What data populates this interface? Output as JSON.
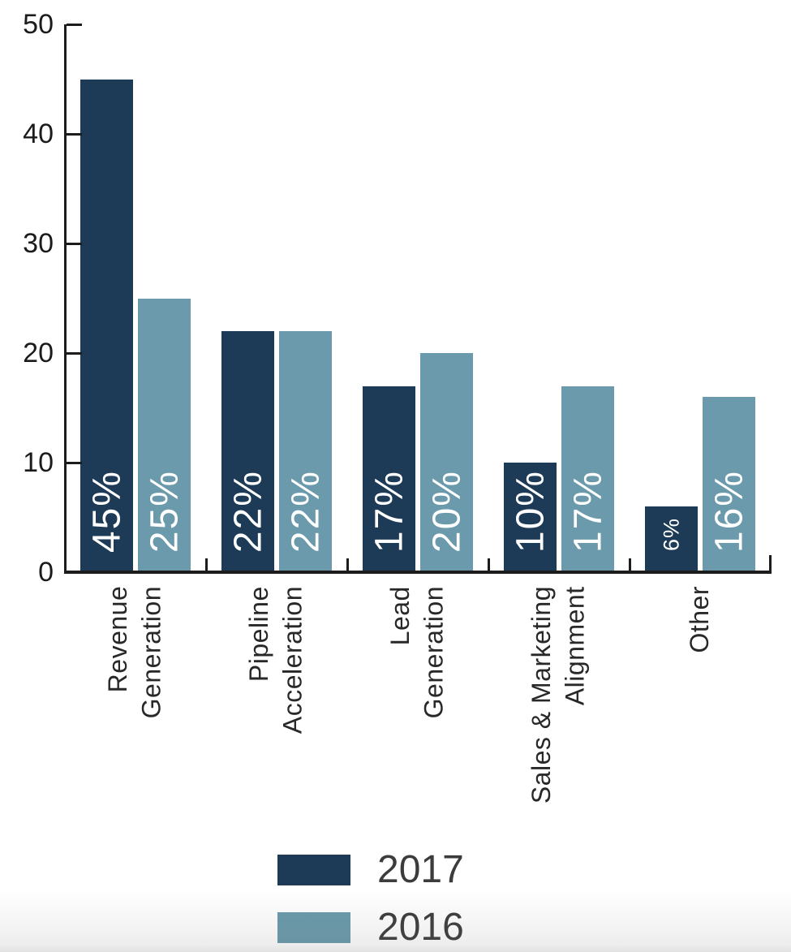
{
  "chart_data": {
    "type": "bar",
    "title": "",
    "categories": [
      "Revenue\nGeneration",
      "Pipeline\nAcceleration",
      "Lead\nGeneration",
      "Sales & Marketing\nAlignment",
      "Other"
    ],
    "series": [
      {
        "name": "2017",
        "color": "#1d3a57",
        "values": [
          45,
          22,
          17,
          10,
          6
        ],
        "labels": [
          "45%",
          "22%",
          "17%",
          "10%",
          "6%"
        ]
      },
      {
        "name": "2016",
        "color": "#6a9aab",
        "values": [
          25,
          22,
          20,
          17,
          16
        ],
        "labels": [
          "25%",
          "22%",
          "20%",
          "17%",
          "16%"
        ]
      }
    ],
    "ylim": [
      0,
      50
    ],
    "yticks": [
      0,
      10,
      20,
      30,
      40,
      50
    ],
    "xlabel": "",
    "ylabel": "",
    "grid": false,
    "legend_position": "bottom",
    "bar_label_color": "#ffffff",
    "axis_color": "#1c1c1c",
    "text_color": "#282828"
  }
}
